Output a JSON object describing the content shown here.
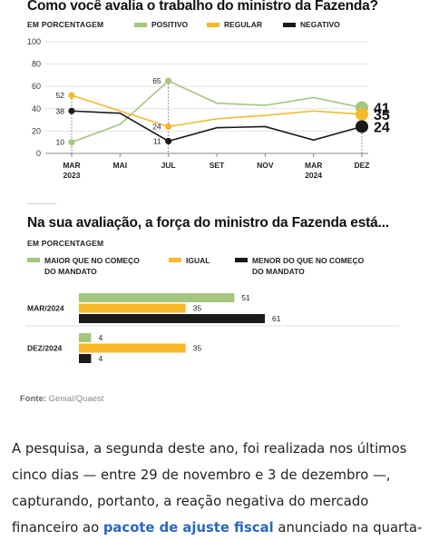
{
  "chart_data": [
    {
      "type": "line",
      "title": "Como você avalia o trabalho do ministro da Fazenda?",
      "subtitle": "EM PORCENTAGEM",
      "x_labels": [
        "MAR\n2023",
        "MAI",
        "JUL",
        "SET",
        "NOV",
        "MAR\n2024",
        "DEZ"
      ],
      "ylim": [
        0,
        100
      ],
      "yticks": [
        0,
        20,
        40,
        60,
        80,
        100
      ],
      "grid": true,
      "legend_position": "top",
      "series": [
        {
          "name": "POSITIVO",
          "color": "#a3c77e",
          "values": [
            10,
            26,
            65,
            45,
            43,
            50,
            41
          ],
          "labels": [
            "10",
            "",
            "65",
            "",
            "",
            "",
            "41"
          ]
        },
        {
          "name": "REGULAR",
          "color": "#f7b928",
          "values": [
            52,
            38,
            24,
            31,
            34,
            38,
            35
          ],
          "labels": [
            "52",
            "",
            "24",
            "",
            "",
            "",
            "35"
          ]
        },
        {
          "name": "NEGATIVO",
          "color": "#1a1a1a",
          "values": [
            38,
            36,
            11,
            23,
            24,
            12,
            24
          ],
          "labels": [
            "38",
            "",
            "11",
            "",
            "",
            "",
            "24"
          ]
        }
      ]
    },
    {
      "type": "bar",
      "orientation": "horizontal",
      "title": "Na sua avaliação, a força do ministro da Fazenda está...",
      "subtitle": "EM PORCENTAGEM",
      "categories": [
        "MAR/2024",
        "DEZ/2024"
      ],
      "legend_position": "top",
      "series": [
        {
          "name": "MAIOR QUE NO COMEÇO DO MANDATO",
          "color": "#a3c77e",
          "values": [
            51,
            4
          ]
        },
        {
          "name": "IGUAL",
          "color": "#f7b928",
          "values": [
            35,
            35
          ]
        },
        {
          "name": "MENOR DO QUE NO COMEÇO DO MANDATO",
          "color": "#1a1a1a",
          "values": [
            61,
            4
          ]
        }
      ]
    }
  ],
  "chart1_title": "Como você avalia o trabalho do ministro da Fazenda?",
  "chart1_subtitle": "EM PORCENTAGEM",
  "chart1_legend": [
    "POSITIVO",
    "REGULAR",
    "NEGATIVO"
  ],
  "chart2_title": "Na sua avaliação, a força do ministro da Fazenda está...",
  "chart2_subtitle": "EM PORCENTAGEM",
  "chart2_legend": [
    {
      "line1": "MAIOR QUE NO COMEÇO",
      "line2": "DO MANDATO"
    },
    {
      "line1": "IGUAL",
      "line2": ""
    },
    {
      "line1": "MENOR DO QUE NO COMEÇO",
      "line2": "DO MANDATO"
    }
  ],
  "source": {
    "label": "Fonte:",
    "text": "Genial/Quaest"
  },
  "article": {
    "line1": "A pesquisa, a segunda deste ano, foi realizada nos últimos",
    "line2": "cinco dias — entre 29 de novembro e 3 de dezembro —,",
    "line3": "capturando, portanto, a reação negativa do mercado",
    "line4_before": "financeiro ao ",
    "line4_link": "pacote de ajuste fiscal",
    "line4_after": " anunciado na quarta-"
  },
  "colors": {
    "positive": "#a3c77e",
    "regular": "#f7b928",
    "negative": "#1a1a1a",
    "grid": "#e3e3e3",
    "link": "#2a66c2"
  }
}
